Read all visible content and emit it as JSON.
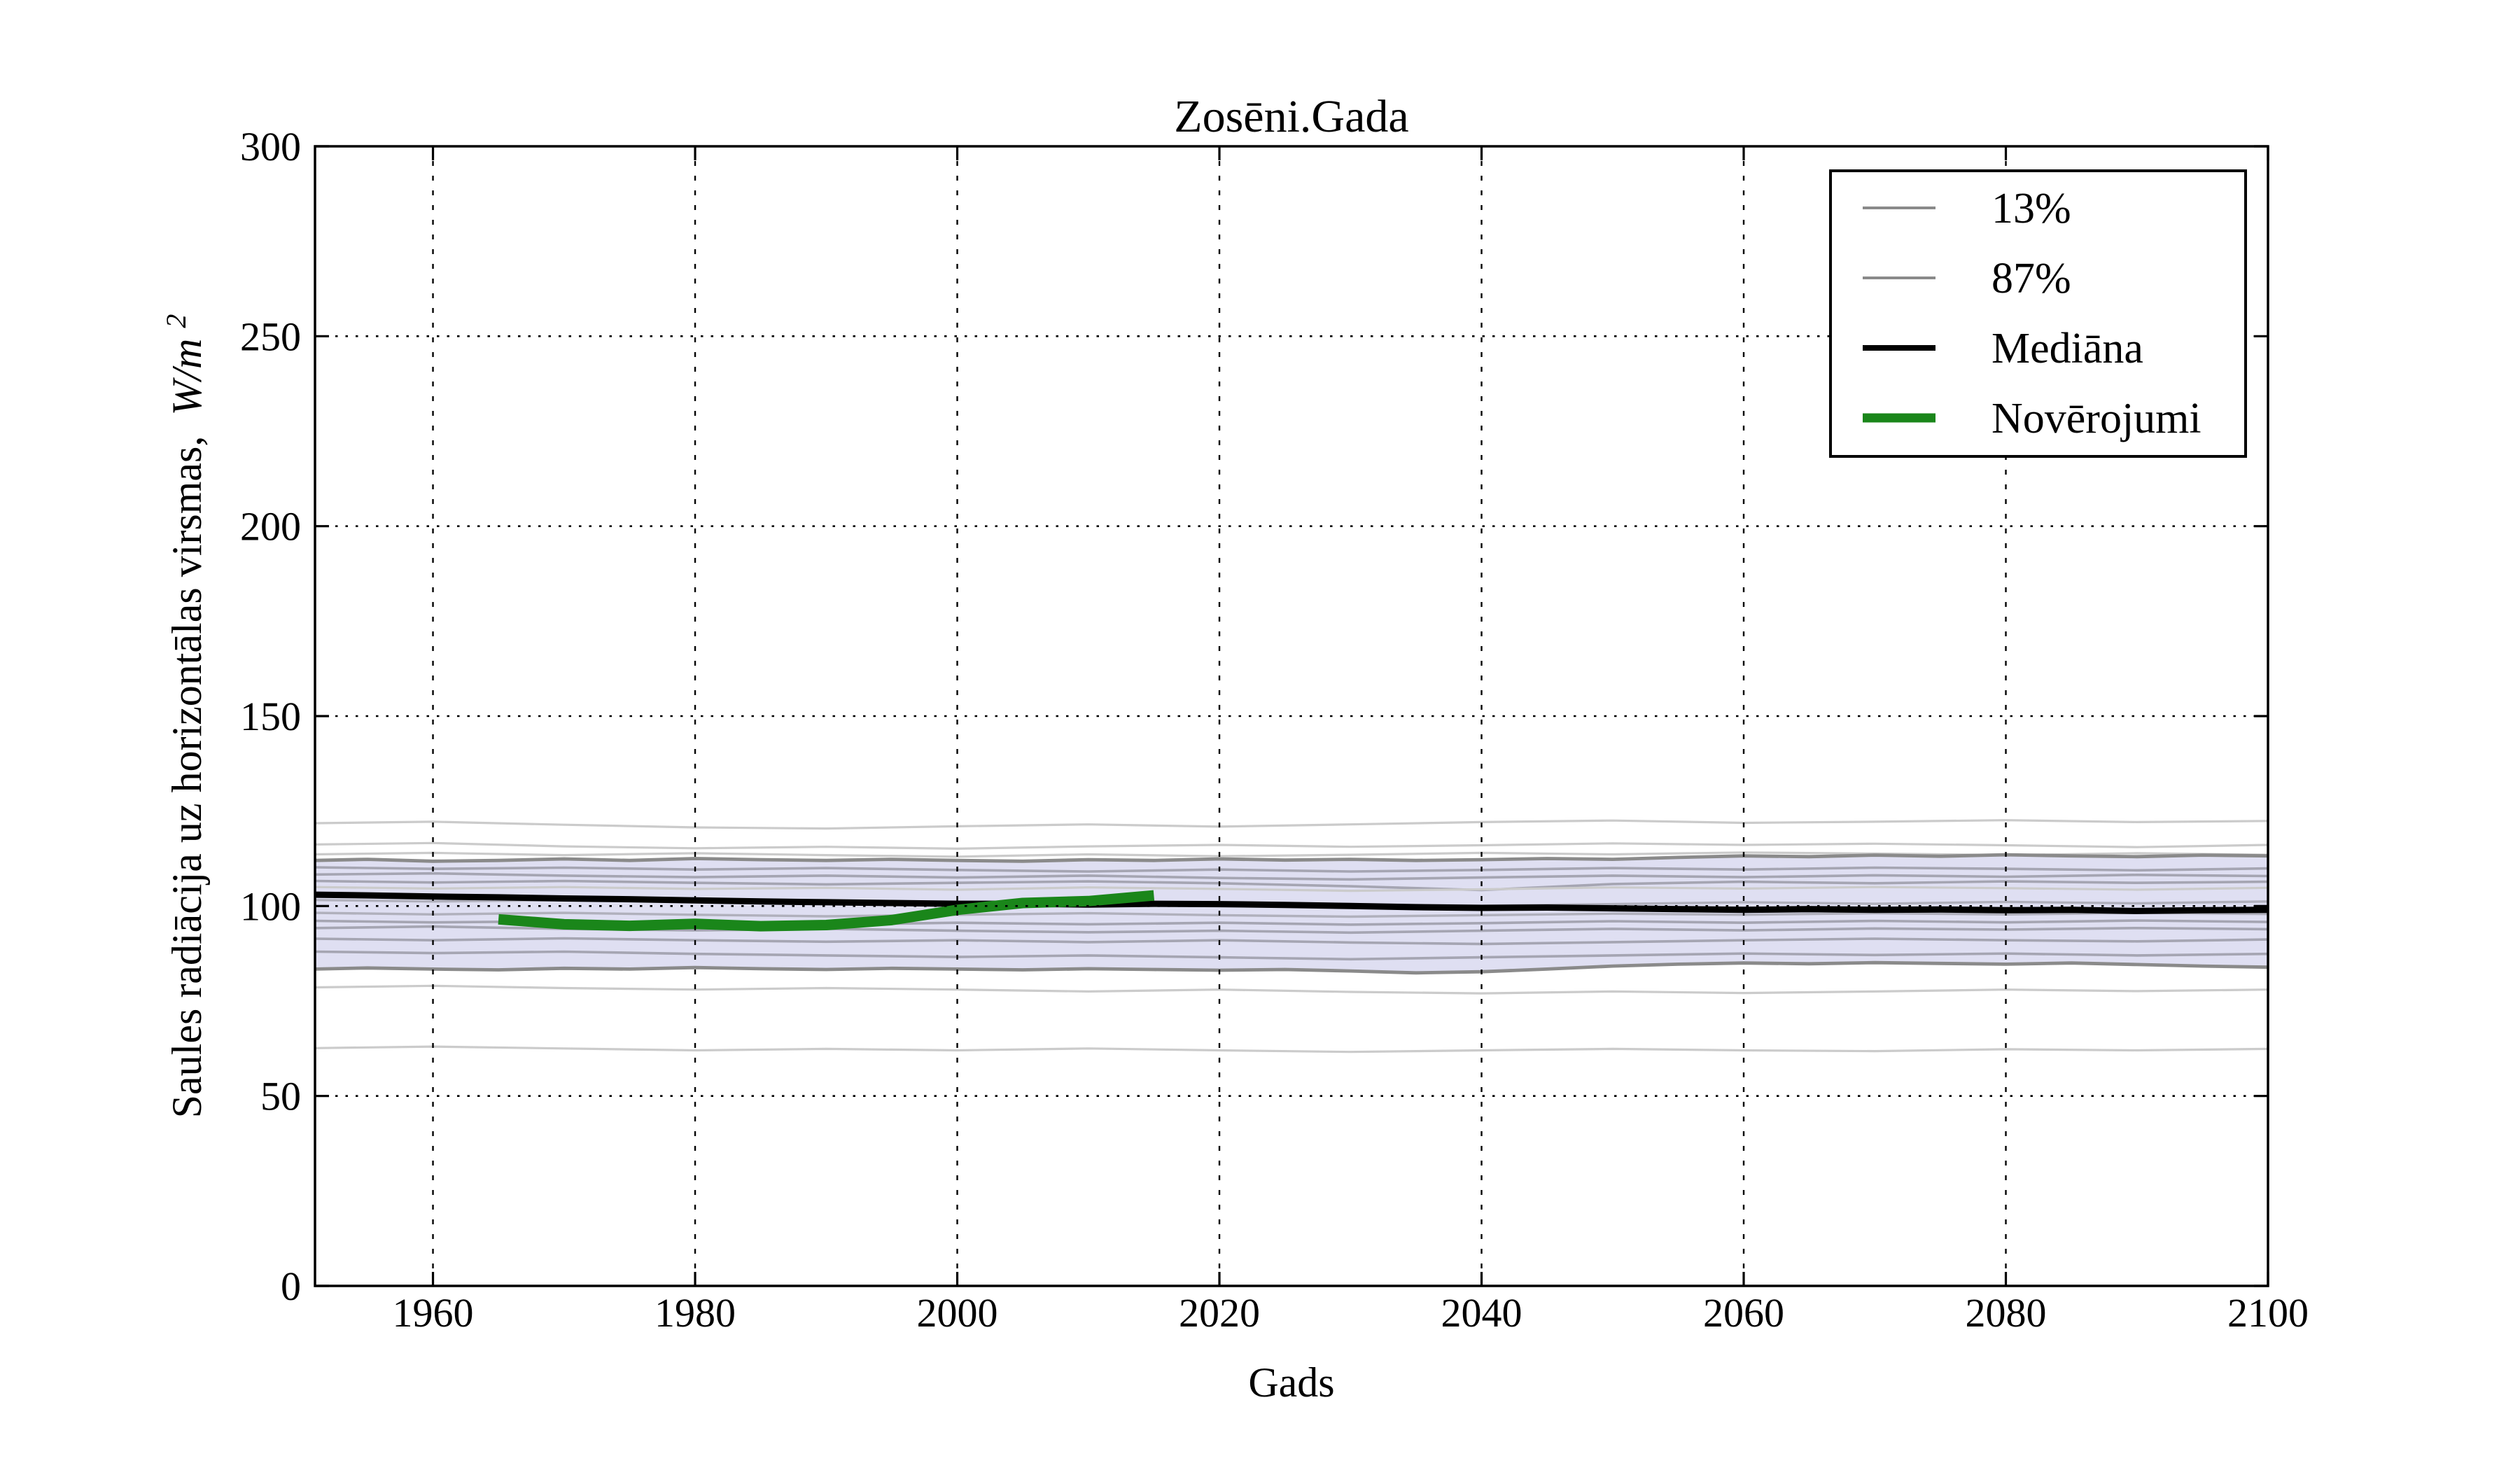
{
  "figure": {
    "title": "Zosēni.Gada",
    "xlabel": "Gads",
    "ylabel": {
      "text": "Saules radiācija uz horizontālas virsmas,",
      "math": "W/m",
      "exp": "2"
    },
    "background": "#ffffff"
  },
  "legend": {
    "position": "upper right",
    "items": [
      {
        "label": "13%",
        "color": "#8a8a8a",
        "line_width": 4
      },
      {
        "label": "87%",
        "color": "#8a8a8a",
        "line_width": 4
      },
      {
        "label": "Mediāna",
        "color": "#000000",
        "line_width": 8
      },
      {
        "label": "Novērojumi",
        "color": "#1a861a",
        "line_width": 13
      }
    ]
  },
  "chart_data": {
    "type": "line",
    "title": "Zosēni.Gada",
    "xlabel": "Gads",
    "ylabel": "Saules radiācija uz horizontālas virsmas, W/m^2",
    "x_range": [
      1951,
      2100
    ],
    "y_range": [
      0,
      300
    ],
    "x_ticks": [
      1960,
      1980,
      2000,
      2020,
      2040,
      2060,
      2080,
      2100
    ],
    "y_ticks": [
      0,
      50,
      100,
      150,
      200,
      250,
      300
    ],
    "grid": true,
    "grid_color": "#000000",
    "legend_position": "upper right",
    "band": {
      "name": "13-87% percentile band",
      "fill": "#dfdff2",
      "edge_color": "#8a8a8a",
      "x": [
        1951,
        1955,
        1960,
        1965,
        1970,
        1975,
        1980,
        1985,
        1990,
        1995,
        2000,
        2005,
        2010,
        2015,
        2020,
        2025,
        2030,
        2035,
        2040,
        2045,
        2050,
        2055,
        2060,
        2065,
        2070,
        2075,
        2080,
        2085,
        2090,
        2095,
        2100
      ],
      "upper": [
        112.0,
        112.3,
        111.8,
        112.0,
        112.4,
        112.0,
        112.5,
        112.2,
        112.0,
        112.3,
        112.0,
        111.8,
        112.2,
        112.0,
        112.4,
        112.1,
        112.3,
        112.0,
        112.2,
        112.5,
        112.3,
        112.8,
        113.2,
        113.0,
        113.4,
        113.1,
        113.5,
        113.2,
        113.0,
        113.4,
        113.2
      ],
      "lower": [
        83.4,
        83.7,
        83.4,
        83.2,
        83.6,
        83.4,
        83.8,
        83.5,
        83.3,
        83.6,
        83.4,
        83.2,
        83.5,
        83.3,
        83.1,
        83.3,
        82.9,
        82.4,
        82.7,
        83.4,
        84.2,
        84.7,
        85.0,
        84.8,
        85.1,
        84.9,
        84.7,
        85.0,
        84.6,
        84.2,
        83.9
      ]
    },
    "series": [
      {
        "name": "Mediāna",
        "color": "#000000",
        "width": 9,
        "x": [
          1951,
          1955,
          1960,
          1965,
          1970,
          1975,
          1980,
          1985,
          1990,
          1995,
          2000,
          2005,
          2010,
          2015,
          2020,
          2025,
          2030,
          2035,
          2040,
          2045,
          2050,
          2055,
          2060,
          2065,
          2070,
          2075,
          2080,
          2085,
          2090,
          2095,
          2100
        ],
        "y": [
          103.0,
          102.8,
          102.5,
          102.3,
          102.0,
          101.8,
          101.5,
          101.2,
          101.0,
          100.8,
          100.6,
          100.6,
          100.4,
          100.6,
          100.5,
          100.3,
          100.0,
          99.7,
          99.5,
          99.6,
          99.4,
          99.2,
          99.0,
          99.2,
          99.0,
          99.1,
          98.9,
          99.0,
          98.7,
          98.9,
          99.0
        ]
      },
      {
        "name": "Novērojumi",
        "color": "#1a861a",
        "width": 15,
        "x": [
          1965,
          1970,
          1975,
          1980,
          1985,
          1990,
          1995,
          2000,
          2005,
          2010,
          2015
        ],
        "y": [
          96.5,
          95.2,
          94.8,
          95.3,
          94.7,
          95.0,
          96.3,
          99.0,
          100.8,
          101.3,
          102.8
        ]
      }
    ],
    "ensemble": {
      "x": [
        1951,
        1960,
        1970,
        1980,
        1990,
        2000,
        2010,
        2020,
        2030,
        2040,
        2050,
        2060,
        2070,
        2080,
        2090,
        2100
      ],
      "lines": [
        {
          "color": "#cbcbcb",
          "width": 3.2,
          "y": [
            121.8,
            122.2,
            121.4,
            120.7,
            120.4,
            121.0,
            121.5,
            120.9,
            121.5,
            122.1,
            122.5,
            121.9,
            122.2,
            122.6,
            122.1,
            122.4
          ]
        },
        {
          "color": "#cbcbcb",
          "width": 3.2,
          "y": [
            116.2,
            116.6,
            115.7,
            115.2,
            115.6,
            115.1,
            115.7,
            116.1,
            115.6,
            116.0,
            116.5,
            116.1,
            116.4,
            116.0,
            115.5,
            116.1
          ]
        },
        {
          "color": "#cbcbcb",
          "width": 3.2,
          "y": [
            113.6,
            114.0,
            113.4,
            113.9,
            113.4,
            113.0,
            113.6,
            113.1,
            113.5,
            114.0,
            113.6,
            114.1,
            113.8,
            113.4,
            113.9,
            113.5
          ]
        },
        {
          "color": "#a5a5b2",
          "width": 3.6,
          "y": [
            110.2,
            109.8,
            110.1,
            109.6,
            110.0,
            109.5,
            109.1,
            109.6,
            109.1,
            109.5,
            110.0,
            109.6,
            110.1,
            109.8,
            109.4,
            109.9
          ]
        },
        {
          "color": "#a5a5b2",
          "width": 3.6,
          "y": [
            108.3,
            108.6,
            108.0,
            107.6,
            108.0,
            107.5,
            108.0,
            107.4,
            107.0,
            107.5,
            108.0,
            107.6,
            108.1,
            107.7,
            108.2,
            107.9
          ]
        },
        {
          "color": "#a5a5b2",
          "width": 3.6,
          "y": [
            106.6,
            106.2,
            106.6,
            106.1,
            105.7,
            106.1,
            106.5,
            106.0,
            105.2,
            104.2,
            105.8,
            106.4,
            106.0,
            106.5,
            106.1,
            106.4
          ]
        },
        {
          "color": "#cbcbcb",
          "width": 3.2,
          "y": [
            105.0,
            104.6,
            105.0,
            104.5,
            104.8,
            104.3,
            104.9,
            104.5,
            104.0,
            104.4,
            104.9,
            104.6,
            105.0,
            104.7,
            104.3,
            104.8
          ]
        },
        {
          "color": "#b0b0bc",
          "width": 3.4,
          "y": [
            101.6,
            101.2,
            101.6,
            101.1,
            100.7,
            101.1,
            100.6,
            101.0,
            100.5,
            100.1,
            100.5,
            101.0,
            100.6,
            101.1,
            100.7,
            101.2
          ]
        },
        {
          "color": "#b0b0bc",
          "width": 3.4,
          "y": [
            98.2,
            97.8,
            98.2,
            97.7,
            97.3,
            97.7,
            98.1,
            97.6,
            97.2,
            97.6,
            98.0,
            97.7,
            98.1,
            97.8,
            98.2,
            97.9
          ]
        },
        {
          "color": "#a5a5b2",
          "width": 3.6,
          "y": [
            96.1,
            95.7,
            96.0,
            95.5,
            95.1,
            95.6,
            95.2,
            95.6,
            95.1,
            95.5,
            96.0,
            95.6,
            96.1,
            95.7,
            96.2,
            95.8
          ]
        },
        {
          "color": "#a5a5b2",
          "width": 3.6,
          "y": [
            94.2,
            94.6,
            94.0,
            93.6,
            94.0,
            93.5,
            93.1,
            93.5,
            93.0,
            93.5,
            94.0,
            93.6,
            94.1,
            93.8,
            94.2,
            93.9
          ]
        },
        {
          "color": "#a5a5b2",
          "width": 3.6,
          "y": [
            91.4,
            91.0,
            91.5,
            91.0,
            90.6,
            91.0,
            90.5,
            91.0,
            90.4,
            90.0,
            90.5,
            91.0,
            91.4,
            91.0,
            90.7,
            91.2
          ]
        },
        {
          "color": "#a5a5b2",
          "width": 3.6,
          "y": [
            88.0,
            87.6,
            88.0,
            87.4,
            87.0,
            86.6,
            87.0,
            86.5,
            86.0,
            86.5,
            87.0,
            87.5,
            87.1,
            87.5,
            87.0,
            87.4
          ]
        },
        {
          "color": "#cbcbcb",
          "width": 3.2,
          "y": [
            78.6,
            79.0,
            78.4,
            78.0,
            78.4,
            78.0,
            77.5,
            78.0,
            77.4,
            77.0,
            77.5,
            77.1,
            77.5,
            78.0,
            77.6,
            78.0
          ]
        },
        {
          "color": "#cbcbcb",
          "width": 3.2,
          "y": [
            62.6,
            63.0,
            62.5,
            62.0,
            62.4,
            62.0,
            62.5,
            62.0,
            61.6,
            62.0,
            62.4,
            62.0,
            61.8,
            62.3,
            62.0,
            62.4
          ]
        }
      ]
    }
  }
}
